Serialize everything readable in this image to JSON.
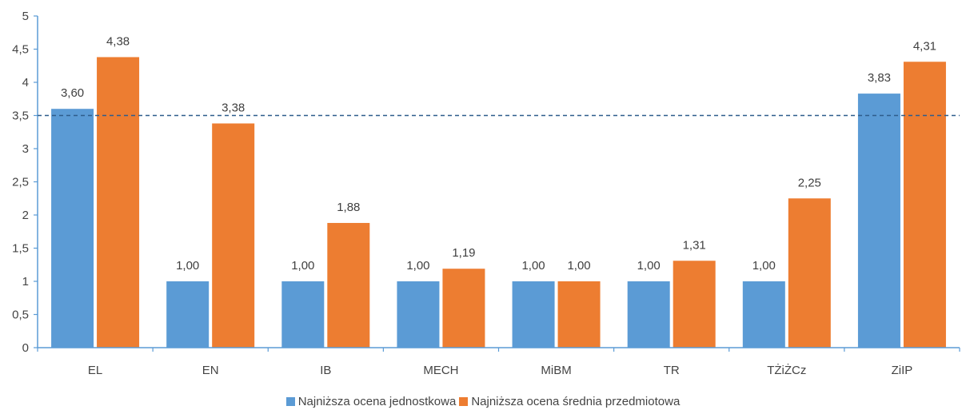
{
  "chart_data": {
    "type": "bar",
    "categories": [
      "EL",
      "EN",
      "IB",
      "MECH",
      "MiBM",
      "TR",
      "TŻiŻCz",
      "ZiIP"
    ],
    "series": [
      {
        "name": "Najniższa ocena jednostkowa",
        "color": "#5b9bd5",
        "values": [
          3.6,
          1.0,
          1.0,
          1.0,
          1.0,
          1.0,
          1.0,
          3.83
        ],
        "labels": [
          "3,60",
          "1,00",
          "1,00",
          "1,00",
          "1,00",
          "1,00",
          "1,00",
          "3,83"
        ]
      },
      {
        "name": "Najniższa ocena średnia przedmiotowa",
        "color": "#ed7d31",
        "values": [
          4.38,
          3.38,
          1.88,
          1.19,
          1.0,
          1.31,
          2.25,
          4.31
        ],
        "labels": [
          "4,38",
          "3,38",
          "1,88",
          "1,19",
          "1,00",
          "1,31",
          "2,25",
          "4,31"
        ]
      }
    ],
    "ylim": [
      0,
      5
    ],
    "yticks": [
      "0",
      "0,5",
      "1",
      "1,5",
      "2",
      "2,5",
      "3",
      "3,5",
      "4",
      "4,5",
      "5"
    ],
    "reference_line": {
      "value": 3.5,
      "style": "dashed",
      "color": "#2e5d8c"
    },
    "axis_color": "#5b9bd5",
    "grid": false,
    "legend_position": "bottom",
    "title": "",
    "xlabel": "",
    "ylabel": ""
  }
}
